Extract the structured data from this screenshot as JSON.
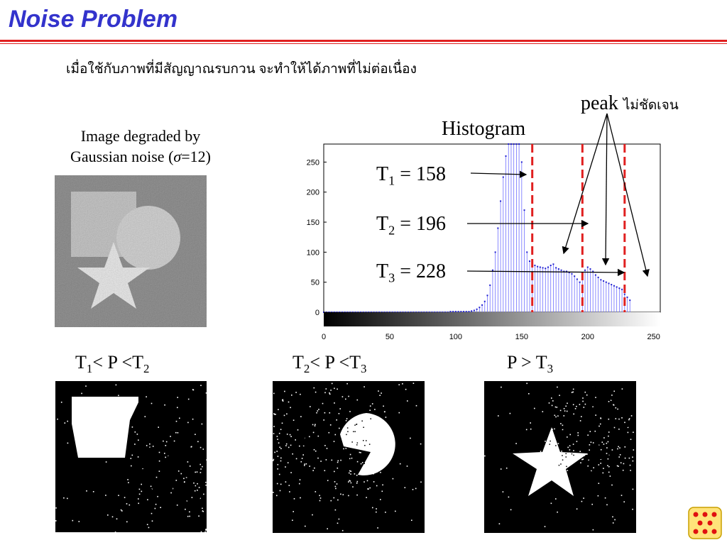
{
  "slide": {
    "title": "Noise Problem",
    "subtitle": "เมื่อใช้กับภาพที่มีสัญญาณรบกวน จะทำให้ได้ภาพที่ไม่ต่อเนื่อง"
  },
  "original_image": {
    "caption_line1": "Image degraded by",
    "caption_line2_pre": "Gaussian noise (",
    "caption_sigma": "σ",
    "caption_line2_post": "=12)"
  },
  "histogram": {
    "title": "Histogram",
    "peak_label": "peak",
    "peak_label_thai": "ไม่ชัดเจน",
    "thresholds": [
      {
        "name": "T",
        "sub": "1",
        "eq": " = 158",
        "value": 158
      },
      {
        "name": "T",
        "sub": "2",
        "eq": " = 196",
        "value": 196
      },
      {
        "name": "T",
        "sub": "3",
        "eq": " = 228",
        "value": 228
      }
    ]
  },
  "chart_data": {
    "type": "bar",
    "title": "Histogram",
    "xlabel": "",
    "ylabel": "",
    "xlim": [
      0,
      255
    ],
    "ylim": [
      0,
      280
    ],
    "xticks": [
      0,
      50,
      100,
      150,
      200,
      250
    ],
    "yticks": [
      0,
      50,
      100,
      150,
      200,
      250
    ],
    "thresholds": [
      158,
      196,
      228
    ],
    "grid": false,
    "colors": {
      "bars": "#6f6fff",
      "thresholds": "#e02020"
    },
    "series": [
      {
        "x_start": 0,
        "bin_width": 2,
        "values": [
          0,
          0,
          0,
          0,
          0,
          0,
          0,
          0,
          0,
          0,
          0,
          0,
          0,
          0,
          0,
          0,
          0,
          0,
          0,
          0,
          0,
          0,
          0,
          0,
          0,
          0,
          0,
          0,
          0,
          0,
          0,
          0,
          0,
          0,
          0,
          0,
          0,
          0,
          0,
          0,
          0,
          0,
          0,
          0,
          0,
          0,
          0,
          0,
          1,
          1,
          1,
          1,
          1,
          1,
          1,
          1,
          2,
          3,
          5,
          8,
          12,
          18,
          28,
          45,
          70,
          100,
          140,
          185,
          225,
          260,
          280,
          280,
          280,
          280,
          280,
          250,
          170,
          100,
          85,
          80,
          78,
          76,
          75,
          74,
          73,
          75,
          78,
          80,
          74,
          72,
          70,
          68,
          68,
          66,
          64,
          60,
          55,
          50,
          56,
          70,
          75,
          72,
          68,
          62,
          58,
          54,
          52,
          50,
          48,
          46,
          44,
          42,
          40,
          38,
          30,
          25,
          20
        ]
      }
    ]
  },
  "masks": [
    {
      "label_pre": "T",
      "label_sub1": "1",
      "label_mid": "< P <T",
      "label_sub2": "2"
    },
    {
      "label_pre": "T",
      "label_sub1": "2",
      "label_mid": "< P <T",
      "label_sub2": "3"
    },
    {
      "label_pre": "P > T",
      "label_sub1": "",
      "label_mid": "",
      "label_sub2": "3"
    }
  ],
  "decorations": {
    "dice_icon": "dice-icon"
  }
}
